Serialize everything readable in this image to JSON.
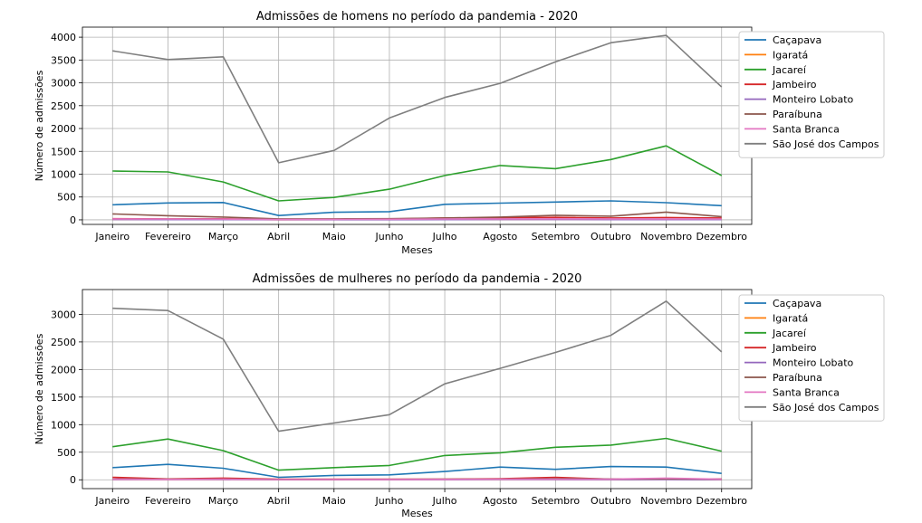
{
  "chart_data": [
    {
      "type": "line",
      "title": "Admissões de homens no período da pandemia - 2020",
      "xlabel": "Meses",
      "ylabel": "Número de admissões",
      "categories": [
        "Janeiro",
        "Fevereiro",
        "Março",
        "Abril",
        "Maio",
        "Junho",
        "Julho",
        "Agosto",
        "Setembro",
        "Outubro",
        "Novembro",
        "Dezembro"
      ],
      "yticks": [
        0,
        500,
        1000,
        1500,
        2000,
        2500,
        3000,
        3500,
        4000
      ],
      "ylim": [
        -100,
        4220
      ],
      "grid": true,
      "legend_position": "top-right-outside",
      "series": [
        {
          "name": "Caçapava",
          "color": "#1f77b4",
          "values": [
            330,
            370,
            380,
            95,
            165,
            180,
            340,
            365,
            390,
            415,
            375,
            310
          ]
        },
        {
          "name": "Igaratá",
          "color": "#ff7f0e",
          "values": [
            10,
            8,
            10,
            3,
            5,
            5,
            8,
            10,
            12,
            10,
            10,
            8
          ]
        },
        {
          "name": "Jacareí",
          "color": "#2ca02c",
          "values": [
            1070,
            1050,
            830,
            415,
            490,
            670,
            970,
            1190,
            1120,
            1320,
            1620,
            970
          ]
        },
        {
          "name": "Jambeiro",
          "color": "#d62728",
          "values": [
            25,
            20,
            22,
            10,
            15,
            18,
            40,
            45,
            55,
            40,
            50,
            40
          ]
        },
        {
          "name": "Monteiro Lobato",
          "color": "#9467bd",
          "values": [
            8,
            6,
            6,
            3,
            4,
            4,
            6,
            7,
            8,
            6,
            6,
            5
          ]
        },
        {
          "name": "Paraíbuna",
          "color": "#8c564b",
          "values": [
            130,
            90,
            60,
            20,
            20,
            25,
            40,
            60,
            100,
            80,
            170,
            70
          ]
        },
        {
          "name": "Santa Branca",
          "color": "#e377c2",
          "values": [
            20,
            18,
            16,
            8,
            10,
            12,
            18,
            20,
            22,
            20,
            20,
            18
          ]
        },
        {
          "name": "São José dos Campos",
          "color": "#7f7f7f",
          "values": [
            3700,
            3510,
            3570,
            1250,
            1520,
            2230,
            2680,
            2990,
            3460,
            3880,
            4040,
            2910
          ]
        }
      ]
    },
    {
      "type": "line",
      "title": "Admissões de mulheres no período da pandemia - 2020",
      "xlabel": "Meses",
      "ylabel": "Número de admissões",
      "categories": [
        "Janeiro",
        "Fevereiro",
        "Março",
        "Abril",
        "Maio",
        "Junho",
        "Julho",
        "Agosto",
        "Setembro",
        "Outubro",
        "Novembro",
        "Dezembro"
      ],
      "yticks": [
        0,
        500,
        1000,
        1500,
        2000,
        2500,
        3000
      ],
      "ylim": [
        -160,
        3450
      ],
      "grid": true,
      "legend_position": "top-right-outside",
      "series": [
        {
          "name": "Caçapava",
          "color": "#1f77b4",
          "values": [
            220,
            280,
            210,
            45,
            80,
            90,
            150,
            230,
            190,
            240,
            230,
            115
          ]
        },
        {
          "name": "Igaratá",
          "color": "#ff7f0e",
          "values": [
            8,
            6,
            8,
            2,
            3,
            4,
            5,
            7,
            8,
            6,
            7,
            6
          ]
        },
        {
          "name": "Jacareí",
          "color": "#2ca02c",
          "values": [
            600,
            740,
            530,
            175,
            220,
            260,
            440,
            490,
            590,
            630,
            750,
            520
          ]
        },
        {
          "name": "Jambeiro",
          "color": "#d62728",
          "values": [
            45,
            15,
            30,
            10,
            10,
            10,
            10,
            20,
            45,
            10,
            15,
            15
          ]
        },
        {
          "name": "Monteiro Lobato",
          "color": "#9467bd",
          "values": [
            5,
            4,
            4,
            2,
            2,
            2,
            3,
            4,
            4,
            3,
            4,
            3
          ]
        },
        {
          "name": "Paraíbuna",
          "color": "#8c564b",
          "values": [
            15,
            10,
            12,
            5,
            6,
            8,
            10,
            12,
            20,
            15,
            18,
            12
          ]
        },
        {
          "name": "Santa Branca",
          "color": "#e377c2",
          "values": [
            10,
            8,
            10,
            4,
            6,
            6,
            8,
            10,
            12,
            10,
            30,
            10
          ]
        },
        {
          "name": "São José dos Campos",
          "color": "#7f7f7f",
          "values": [
            3110,
            3070,
            2550,
            880,
            1030,
            1180,
            1740,
            2020,
            2310,
            2620,
            3240,
            2320
          ]
        }
      ]
    }
  ]
}
